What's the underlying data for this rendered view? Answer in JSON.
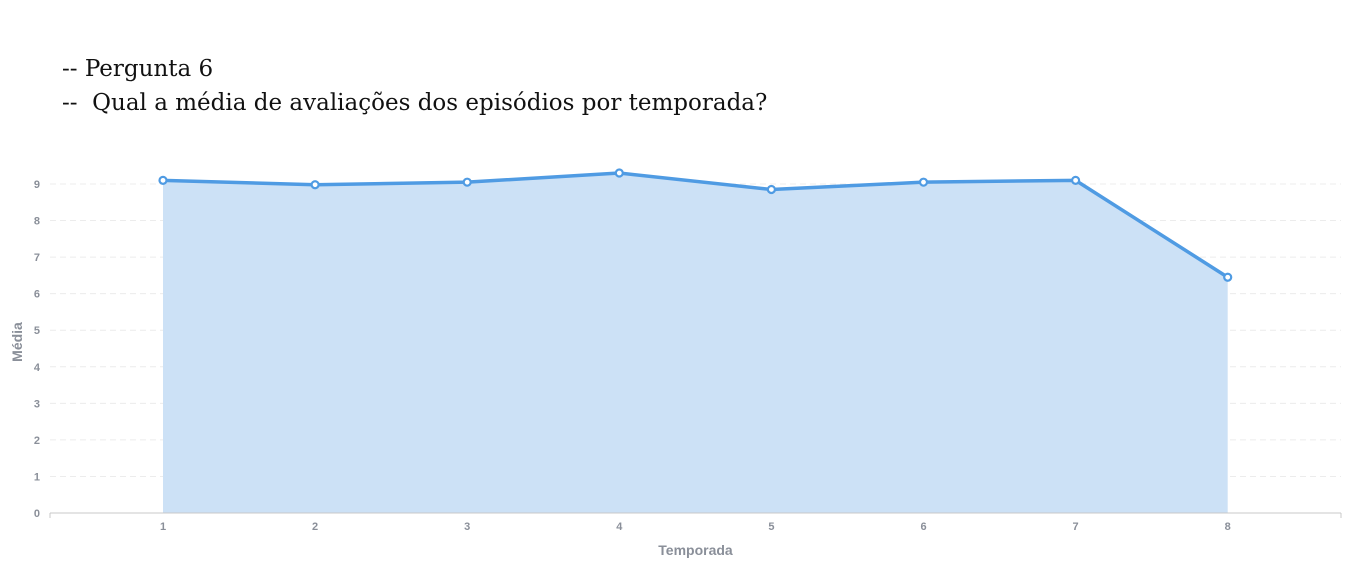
{
  "header": {
    "line1": "-- Pergunta 6",
    "line2": "--  Qual a média de avaliações dos episódios por temporada?"
  },
  "chart_data": {
    "type": "area",
    "title": "",
    "xlabel": "Temporada",
    "ylabel": "Média",
    "categories": [
      "1",
      "2",
      "3",
      "4",
      "5",
      "6",
      "7",
      "8"
    ],
    "values": [
      9.1,
      8.98,
      9.05,
      9.3,
      8.85,
      9.05,
      9.1,
      6.45
    ],
    "ylim": [
      0,
      9
    ],
    "yticks": [
      0,
      1,
      2,
      3,
      4,
      5,
      6,
      7,
      8,
      9
    ],
    "grid": true,
    "colors": {
      "line": "#4f9be3",
      "fill": "#cce1f6",
      "grid": "#ececec",
      "axis": "#c8c8c8"
    }
  }
}
